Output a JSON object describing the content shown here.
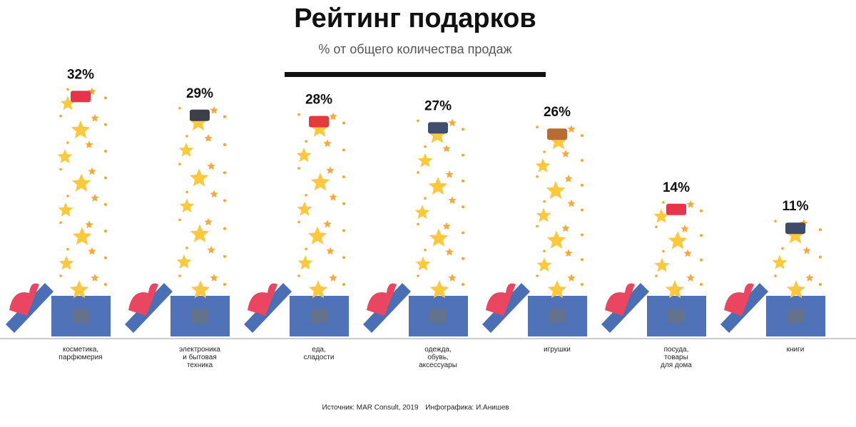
{
  "chart_data": {
    "type": "bar",
    "title": "Рейтинг подарков",
    "subtitle": "% от общего количества продаж",
    "categories": [
      "косметика,\nпарфюмерия",
      "электроника\nи бытовая\nтехника",
      "еда,\nсладости",
      "одежда,\nобувь,\nаксессуары",
      "игрушки",
      "посуда,\nтовары\nдля дома",
      "книги"
    ],
    "values": [
      32,
      29,
      28,
      27,
      26,
      14,
      11
    ],
    "value_labels": [
      "32%",
      "29%",
      "28%",
      "27%",
      "26%",
      "14%",
      "11%"
    ],
    "color": "#fcc83c",
    "source": "Источник: MAR Consult, 2019",
    "credit": "Инфографика: И.Анишев"
  }
}
